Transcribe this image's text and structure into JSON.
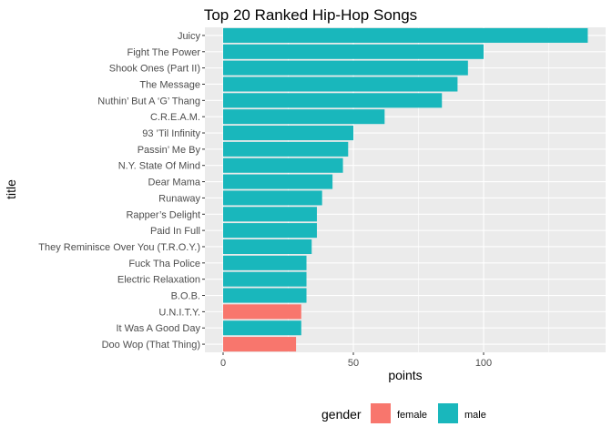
{
  "chart_data": {
    "type": "bar",
    "orientation": "horizontal",
    "title": "Top 20 Ranked Hip-Hop Songs",
    "xlabel": "points",
    "ylabel": "title",
    "xlim": [
      0,
      140
    ],
    "xticks": [
      0,
      50,
      100
    ],
    "grid": true,
    "legend": {
      "title": "gender",
      "placement": "bottom",
      "entries": [
        {
          "label": "female",
          "color": "#F8766D"
        },
        {
          "label": "male",
          "color": "#19B7BC"
        }
      ]
    },
    "categories": [
      "Juicy",
      "Fight The Power",
      "Shook Ones (Part II)",
      "The Message",
      "Nuthin’ But A ‘G’ Thang",
      "C.R.E.A.M.",
      "93 ’Til Infinity",
      "Passin’ Me By",
      "N.Y. State Of Mind",
      "Dear Mama",
      "Runaway",
      "Rapper’s Delight",
      "Paid In Full",
      "They Reminisce Over You (T.R.O.Y.)",
      "Fuck Tha Police",
      "Electric Relaxation",
      "B.O.B.",
      "U.N.I.T.Y.",
      "It Was A Good Day",
      "Doo Wop (That Thing)"
    ],
    "values": [
      140,
      100,
      94,
      90,
      84,
      62,
      50,
      48,
      46,
      42,
      38,
      36,
      36,
      34,
      32,
      32,
      32,
      30,
      30,
      28
    ],
    "gender": [
      "male",
      "male",
      "male",
      "male",
      "male",
      "male",
      "male",
      "male",
      "male",
      "male",
      "male",
      "male",
      "male",
      "male",
      "male",
      "male",
      "male",
      "female",
      "male",
      "female"
    ]
  },
  "colors": {
    "panel": "#EBEBEB",
    "grid_major": "#FFFFFF",
    "female": "#F8766D",
    "male": "#19B7BC"
  }
}
